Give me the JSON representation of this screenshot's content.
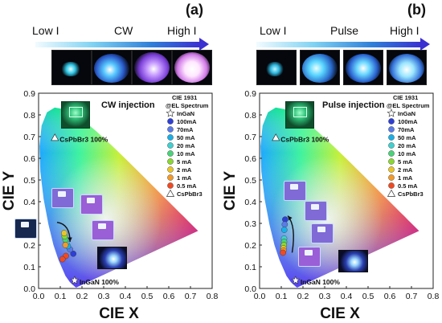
{
  "chart_data": [
    {
      "panel_label": "(a)",
      "type": "scatter",
      "title": "CW injection",
      "header": {
        "left": "Low I",
        "middle": "CW",
        "right": "High I"
      },
      "xlabel": "CIE X",
      "ylabel": "CIE Y",
      "xlim": [
        0,
        0.8
      ],
      "ylim": [
        0,
        0.9
      ],
      "xticks": [
        "0.0",
        "0.1",
        "0.2",
        "0.3",
        "0.4",
        "0.5",
        "0.6",
        "0.7",
        "0.8"
      ],
      "yticks": [
        "0.0",
        "0.1",
        "0.2",
        "0.3",
        "0.4",
        "0.5",
        "0.6",
        "0.7",
        "0.8",
        "0.9"
      ],
      "legend_title": "CIE 1931",
      "legend_subtitle": "@EL Spectrum",
      "legend_position": "top-right",
      "series": [
        {
          "name": "InGaN",
          "marker": "star",
          "color": "#ffffff",
          "points": [
            [
              0.166,
              0.037
            ]
          ]
        },
        {
          "name": "100mA",
          "marker": "circle",
          "color": "#2d3fd6",
          "points": [
            [
              0.16,
              0.16
            ]
          ]
        },
        {
          "name": "70mA",
          "marker": "circle",
          "color": "#5a7be8",
          "points": [
            [
              0.145,
              0.18
            ]
          ]
        },
        {
          "name": "50 mA",
          "marker": "circle",
          "color": "#19b0e8",
          "points": [
            [
              0.135,
              0.195
            ]
          ]
        },
        {
          "name": "20 mA",
          "marker": "circle",
          "color": "#40d0d0",
          "points": [
            [
              0.128,
              0.21
            ]
          ]
        },
        {
          "name": "10 mA",
          "marker": "circle",
          "color": "#4ad47a",
          "points": [
            [
              0.124,
              0.225
            ]
          ]
        },
        {
          "name": "5 mA",
          "marker": "circle",
          "color": "#8ad832",
          "points": [
            [
              0.12,
              0.24
            ]
          ]
        },
        {
          "name": "2 mA",
          "marker": "circle",
          "color": "#e8c52a",
          "points": [
            [
              0.118,
              0.255
            ]
          ]
        },
        {
          "name": "1 mA",
          "marker": "circle",
          "color": "#f29a2a",
          "points": [
            [
              0.124,
              0.2
            ]
          ]
        },
        {
          "name": "0.5 mA",
          "marker": "circle",
          "color": "#f04a22",
          "points": [
            [
              0.126,
              0.15
            ]
          ]
        },
        {
          "name": "CsPbBr3",
          "marker": "triangle",
          "color": "#ffffff",
          "points": [
            [
              0.075,
              0.695
            ]
          ]
        }
      ],
      "extra_points": {
        "color": "#f04a22",
        "points": [
          [
            0.11,
            0.135
          ]
        ]
      },
      "annotations": [
        {
          "text": "CsPbBr3 100%",
          "x": 0.075,
          "y": 0.695
        },
        {
          "text": "InGaN 100%",
          "x": 0.166,
          "y": 0.037
        }
      ],
      "arrow": {
        "direction": "down",
        "from": [
          0.085,
          0.305
        ],
        "to": [
          0.145,
          0.215
        ]
      }
    },
    {
      "panel_label": "(b)",
      "type": "scatter",
      "title": "Pulse injection",
      "header": {
        "left": "Low I",
        "middle": "Pulse",
        "right": "High I"
      },
      "xlabel": "CIE X",
      "ylabel": "CIE Y",
      "xlim": [
        0,
        0.8
      ],
      "ylim": [
        0,
        0.9
      ],
      "xticks": [
        "0.0",
        "0.1",
        "0.2",
        "0.3",
        "0.4",
        "0.5",
        "0.6",
        "0.7",
        "0.8"
      ],
      "yticks": [
        "0.0",
        "0.1",
        "0.2",
        "0.3",
        "0.4",
        "0.5",
        "0.6",
        "0.7",
        "0.8",
        "0.9"
      ],
      "legend_title": "CIE 1931",
      "legend_subtitle": "@EL Spectrum",
      "legend_position": "top-right",
      "series": [
        {
          "name": "InGaN",
          "marker": "star",
          "color": "#ffffff",
          "points": [
            [
              0.166,
              0.037
            ]
          ]
        },
        {
          "name": "100mA",
          "marker": "circle",
          "color": "#2d3fd6",
          "points": [
            [
              0.118,
              0.318
            ]
          ]
        },
        {
          "name": "70mA",
          "marker": "circle",
          "color": "#5a7be8",
          "points": [
            [
              0.116,
              0.295
            ]
          ]
        },
        {
          "name": "50 mA",
          "marker": "circle",
          "color": "#19b0e8",
          "points": [
            [
              0.114,
              0.27
            ]
          ]
        },
        {
          "name": "20 mA",
          "marker": "circle",
          "color": "#40d0d0",
          "points": [
            [
              0.113,
              0.23
            ]
          ]
        },
        {
          "name": "10 mA",
          "marker": "circle",
          "color": "#4ad47a",
          "points": [
            [
              0.113,
              0.215
            ]
          ]
        },
        {
          "name": "5 mA",
          "marker": "circle",
          "color": "#8ad832",
          "points": [
            [
              0.112,
              0.2
            ]
          ]
        },
        {
          "name": "2 mA",
          "marker": "circle",
          "color": "#e8c52a",
          "points": [
            [
              0.11,
              0.185
            ]
          ]
        },
        {
          "name": "1 mA",
          "marker": "circle",
          "color": "#f29a2a",
          "points": [
            [
              0.11,
              0.175
            ]
          ]
        },
        {
          "name": "0.5 mA",
          "marker": "circle",
          "color": "#f04a22",
          "points": [
            [
              0.108,
              0.165
            ]
          ]
        },
        {
          "name": "CsPbBr3",
          "marker": "triangle",
          "color": "#ffffff",
          "points": [
            [
              0.075,
              0.695
            ]
          ]
        }
      ],
      "annotations": [
        {
          "text": "CsPbBr3 100%",
          "x": 0.075,
          "y": 0.695
        },
        {
          "text": "InGaN 100%",
          "x": 0.166,
          "y": 0.037
        }
      ],
      "arrow": {
        "direction": "up",
        "from": [
          0.15,
          0.165
        ],
        "to": [
          0.13,
          0.335
        ]
      }
    }
  ]
}
